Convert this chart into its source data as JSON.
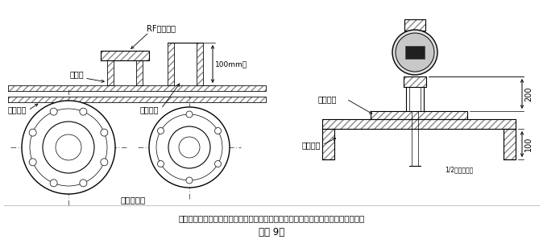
{
  "caption_line1": "插入式流量计短管制作、安装示意图，根据流量计算采用不同的法兰及短管公称直径",
  "caption_line2": "（图 9）",
  "label_rf": "RF配套法兰",
  "label_100mm": "100mm高",
  "label_weld_point": "焊接点",
  "label_pipe": "工艺管道",
  "label_weld_tube": "焊接短管",
  "label_center_line": "管道中心线",
  "label_short_tube": "配套短管",
  "label_outer_wall": "管道外壁",
  "label_half_od": "1/2靶量管外径",
  "dim_200": "200",
  "dim_100": "100",
  "bg_color": "#ffffff",
  "line_color": "#000000"
}
